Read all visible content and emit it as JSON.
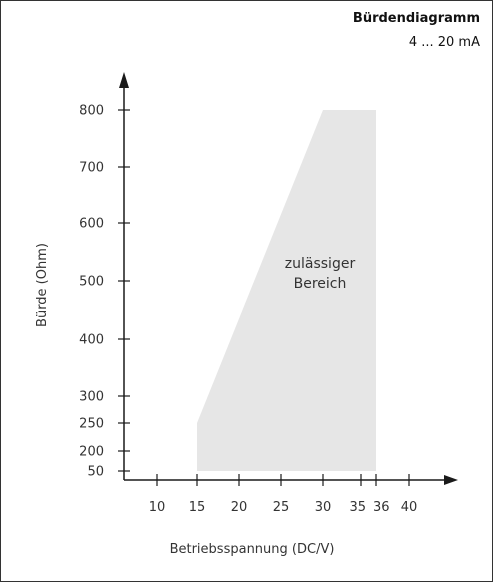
{
  "chart_data": {
    "type": "area",
    "title": "Bürdendiagramm",
    "subtitle": "4 ... 20 mA",
    "xlabel": "Betriebsspannung (DC/V)",
    "ylabel": "Bürde (Ohm)",
    "x_ticks": [
      {
        "value": 10,
        "label": "10"
      },
      {
        "value": 15,
        "label": "15"
      },
      {
        "value": 20,
        "label": "20"
      },
      {
        "value": 25,
        "label": "25"
      },
      {
        "value": 30,
        "label": "30"
      },
      {
        "value": 35,
        "label": "35"
      },
      {
        "value": 36,
        "label": "36"
      },
      {
        "value": 40,
        "label": "40"
      }
    ],
    "y_ticks": [
      {
        "value": 50,
        "label": "50"
      },
      {
        "value": 200,
        "label": "200"
      },
      {
        "value": 250,
        "label": "250"
      },
      {
        "value": 300,
        "label": "300"
      },
      {
        "value": 400,
        "label": "400"
      },
      {
        "value": 500,
        "label": "500"
      },
      {
        "value": 600,
        "label": "600"
      },
      {
        "value": 700,
        "label": "700"
      },
      {
        "value": 800,
        "label": "800"
      }
    ],
    "region": {
      "label_lines": [
        "zulässiger",
        "Bereich"
      ],
      "points": [
        {
          "x": 15,
          "y": 50
        },
        {
          "x": 15,
          "y": 250
        },
        {
          "x": 30,
          "y": 800
        },
        {
          "x": 36,
          "y": 800
        },
        {
          "x": 36,
          "y": 50
        }
      ],
      "color": "#e6e6e6"
    },
    "grid": false,
    "legend": "none"
  }
}
